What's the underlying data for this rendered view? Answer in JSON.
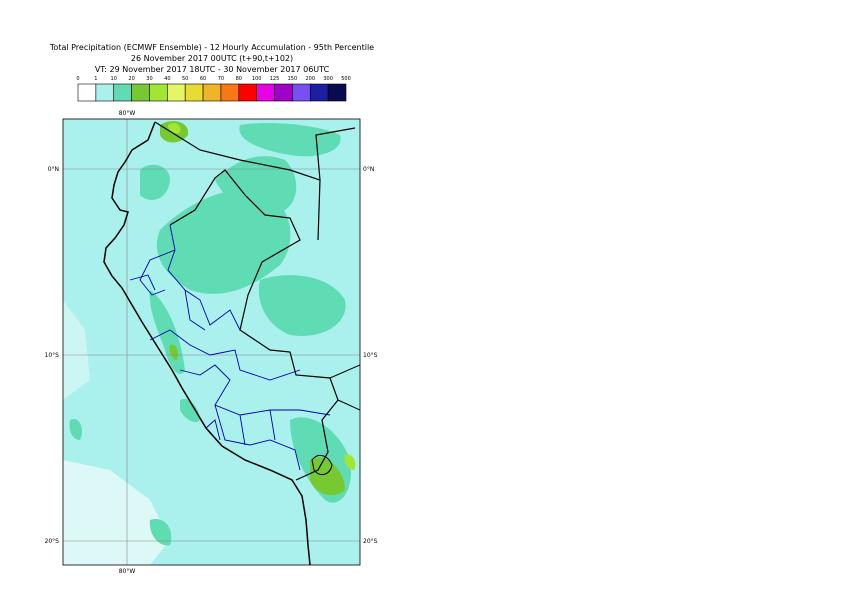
{
  "header": {
    "title": "Total Precipitation (ECMWF Ensemble) - 12 Hourly Accumulation - 95th Percentile",
    "line2": "26 November 2017 00UTC (t+90,t+102)",
    "line3": "VT: 29 November 2017 18UTC - 30 November 2017 06UTC"
  },
  "legend": {
    "ticks": [
      0,
      1,
      10,
      20,
      30,
      40,
      50,
      60,
      70,
      80,
      100,
      125,
      150,
      200,
      300,
      500
    ],
    "colors": [
      "#ffffff",
      "#aaf0ec",
      "#5fdcb4",
      "#78c832",
      "#a0e632",
      "#e6f564",
      "#e6dc32",
      "#f0b428",
      "#fa7814",
      "#ff0000",
      "#e600e6",
      "#a000c8",
      "#7850f0",
      "#1e1ea0",
      "#0a0a50"
    ]
  },
  "map": {
    "lon_labels": [
      "80°W"
    ],
    "lat_labels": [
      "0°N",
      "10°S",
      "20°S"
    ]
  }
}
